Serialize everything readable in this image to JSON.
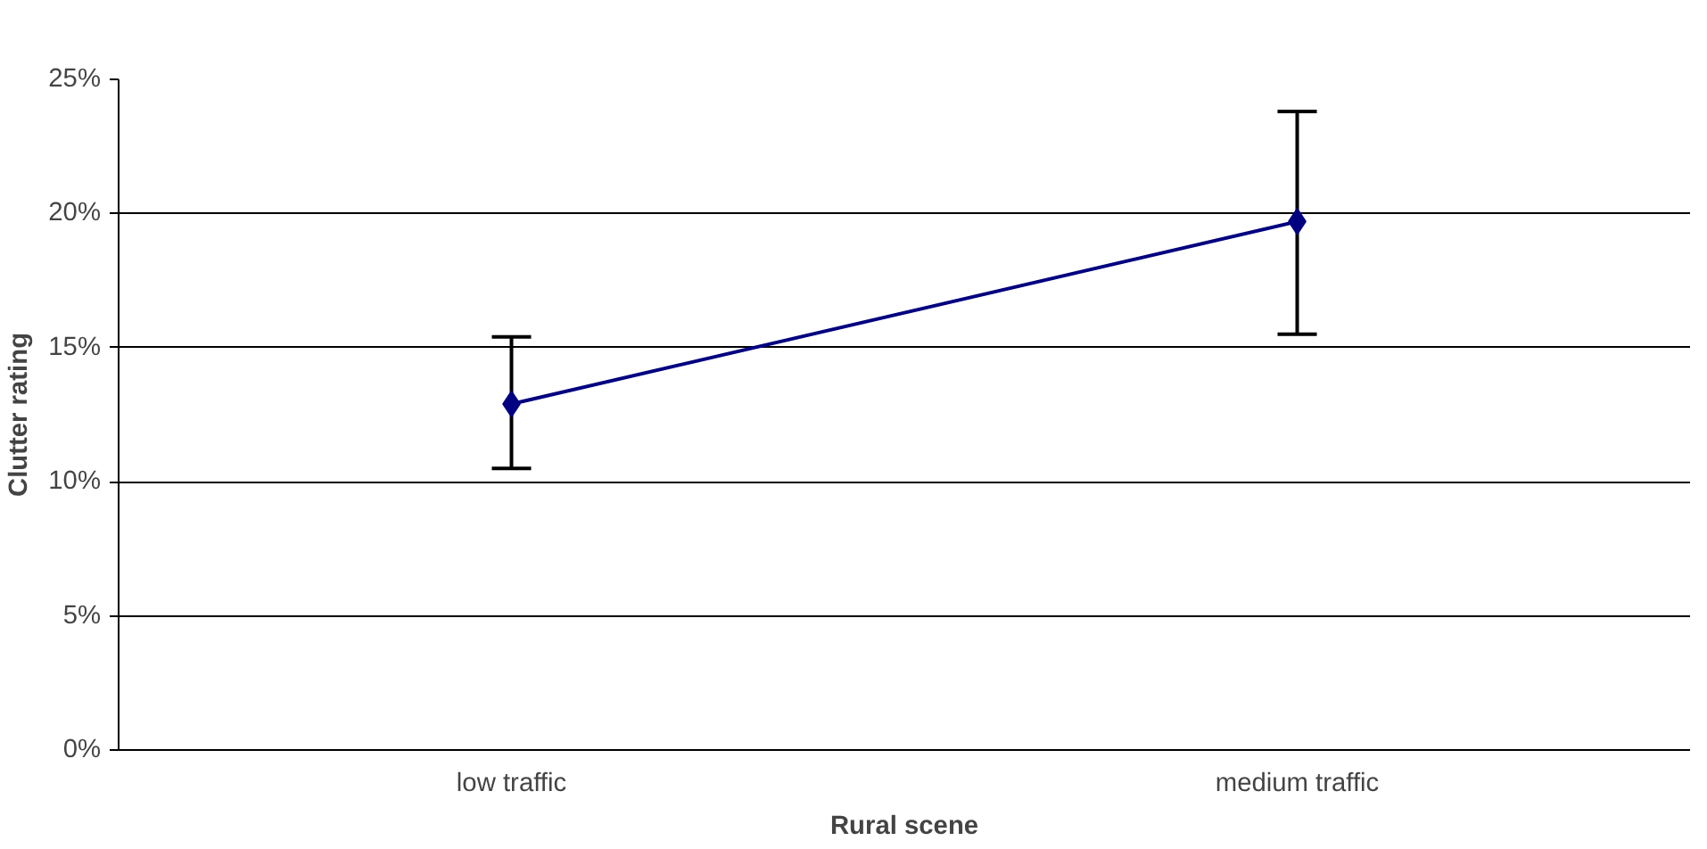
{
  "chart_data": {
    "type": "line",
    "xlabel": "Rural scene",
    "ylabel": "Clutter rating",
    "categories": [
      "low traffic",
      "medium traffic"
    ],
    "series": [
      {
        "color": "#000080",
        "values": [
          12.9,
          19.7
        ],
        "errors": [
          [
            10.5,
            15.4
          ],
          [
            15.5,
            23.8
          ]
        ]
      }
    ],
    "ylim": [
      0,
      25
    ],
    "yticks": [
      {
        "value": 0,
        "label": "0%"
      },
      {
        "value": 5,
        "label": "5%"
      },
      {
        "value": 10,
        "label": "10%"
      },
      {
        "value": 15,
        "label": "15%"
      },
      {
        "value": 20,
        "label": "20%"
      },
      {
        "value": 25,
        "label": "25%"
      }
    ],
    "grid": "y",
    "marker": "diamond",
    "line_style": "solid"
  }
}
